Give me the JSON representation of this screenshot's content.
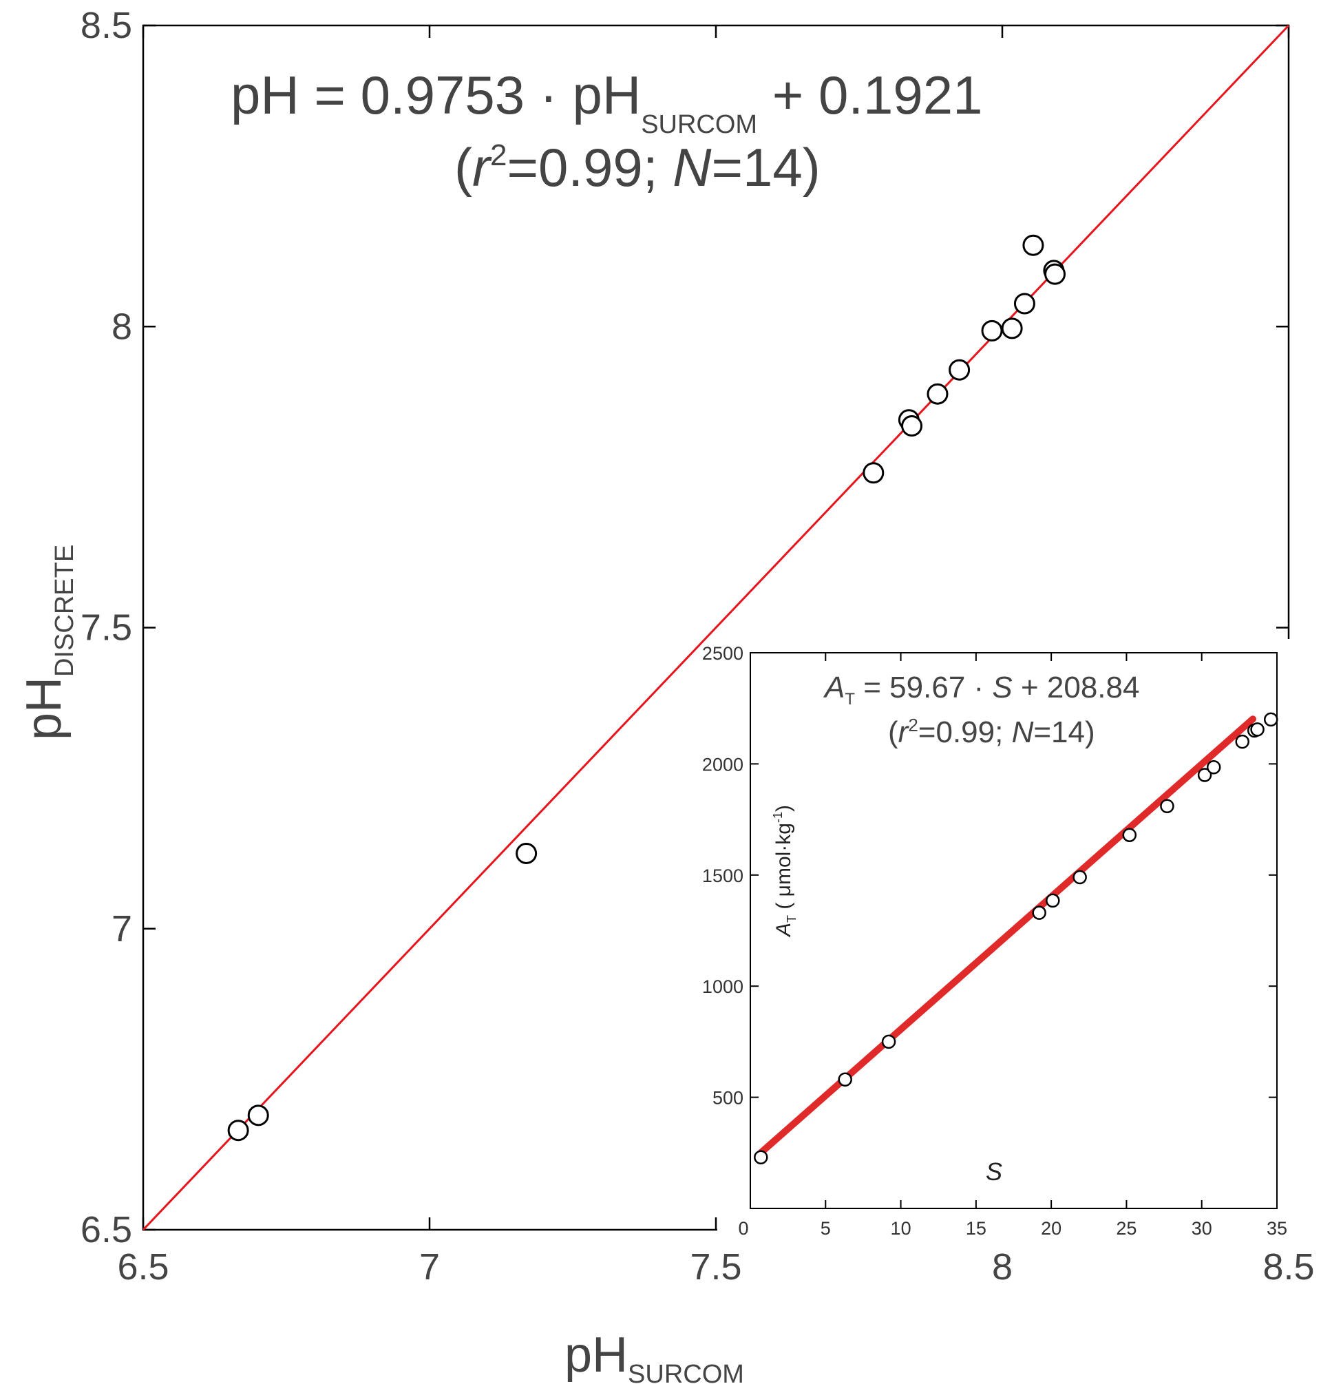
{
  "chart_data": [
    {
      "type": "scatter",
      "xlabel": "pH",
      "xlabel_sub": "SURCOM",
      "ylabel": "pH",
      "ylabel_sub": "DISCRETE",
      "xlim": [
        6.5,
        8.5
      ],
      "ylim": [
        6.5,
        8.5
      ],
      "xticks": [
        "6.5",
        "7",
        "7.5",
        "8",
        "8.5"
      ],
      "yticks": [
        "6.5",
        "7",
        "7.5",
        "8",
        "8.5"
      ],
      "equation": {
        "left": "pH = 0.9753 · pH",
        "sub": "SURCOM",
        "right": " + 0.1921",
        "stats_open": "(",
        "stats_r": "r",
        "stats_sup": "2",
        "stats_mid": "=0.99; ",
        "stats_n": "N",
        "stats_end": "=14)"
      },
      "fit": {
        "slope": 1.0,
        "intercept": 0.0,
        "color": "#e8141c",
        "range": [
          6.5,
          8.5
        ]
      },
      "points": [
        {
          "x": 6.666,
          "y": 6.665
        },
        {
          "x": 6.701,
          "y": 6.69
        },
        {
          "x": 7.169,
          "y": 7.125
        },
        {
          "x": 7.775,
          "y": 7.757
        },
        {
          "x": 7.837,
          "y": 7.845
        },
        {
          "x": 7.842,
          "y": 7.835
        },
        {
          "x": 7.887,
          "y": 7.888
        },
        {
          "x": 7.925,
          "y": 7.928
        },
        {
          "x": 7.982,
          "y": 7.993
        },
        {
          "x": 8.017,
          "y": 7.997
        },
        {
          "x": 8.039,
          "y": 8.038
        },
        {
          "x": 8.054,
          "y": 8.135
        },
        {
          "x": 8.09,
          "y": 8.093
        },
        {
          "x": 8.092,
          "y": 8.087
        }
      ],
      "marker_color": "#000000"
    },
    {
      "type": "scatter",
      "xlabel": "S",
      "ylabel": "A",
      "ylabel_sub": "T",
      "ylabel_unit": " ( μmol·kg",
      "ylabel_unit_sup": "-1",
      "ylabel_unit_end": ")",
      "xlim": [
        0,
        35
      ],
      "ylim": [
        0,
        2500
      ],
      "xticks": [
        "0",
        "5",
        "10",
        "15",
        "20",
        "25",
        "30",
        "35"
      ],
      "yticks": [
        "500",
        "1000",
        "1500",
        "2000",
        "2500"
      ],
      "equation": {
        "a": "A",
        "a_sub": "T",
        "mid": " = 59.67 · ",
        "s": "S",
        "right": " + 208.84",
        "stats_open": "(",
        "stats_r": "r",
        "stats_sup": "2",
        "stats_mid": "=0.99; ",
        "stats_n": "N",
        "stats_end": "=14)"
      },
      "fit": {
        "slope": 59.67,
        "intercept": 208.84,
        "color": "#e02a2a",
        "range": [
          0.7,
          33.4
        ]
      },
      "points": [
        {
          "x": 0.7,
          "y": 230
        },
        {
          "x": 6.3,
          "y": 580
        },
        {
          "x": 9.2,
          "y": 750
        },
        {
          "x": 19.2,
          "y": 1330
        },
        {
          "x": 20.1,
          "y": 1385
        },
        {
          "x": 21.9,
          "y": 1490
        },
        {
          "x": 25.2,
          "y": 1680
        },
        {
          "x": 27.7,
          "y": 1810
        },
        {
          "x": 30.2,
          "y": 1950
        },
        {
          "x": 30.8,
          "y": 1985
        },
        {
          "x": 32.7,
          "y": 2100
        },
        {
          "x": 33.5,
          "y": 2150
        },
        {
          "x": 33.7,
          "y": 2155
        },
        {
          "x": 34.6,
          "y": 2200
        }
      ],
      "marker_color": "#000000"
    }
  ]
}
